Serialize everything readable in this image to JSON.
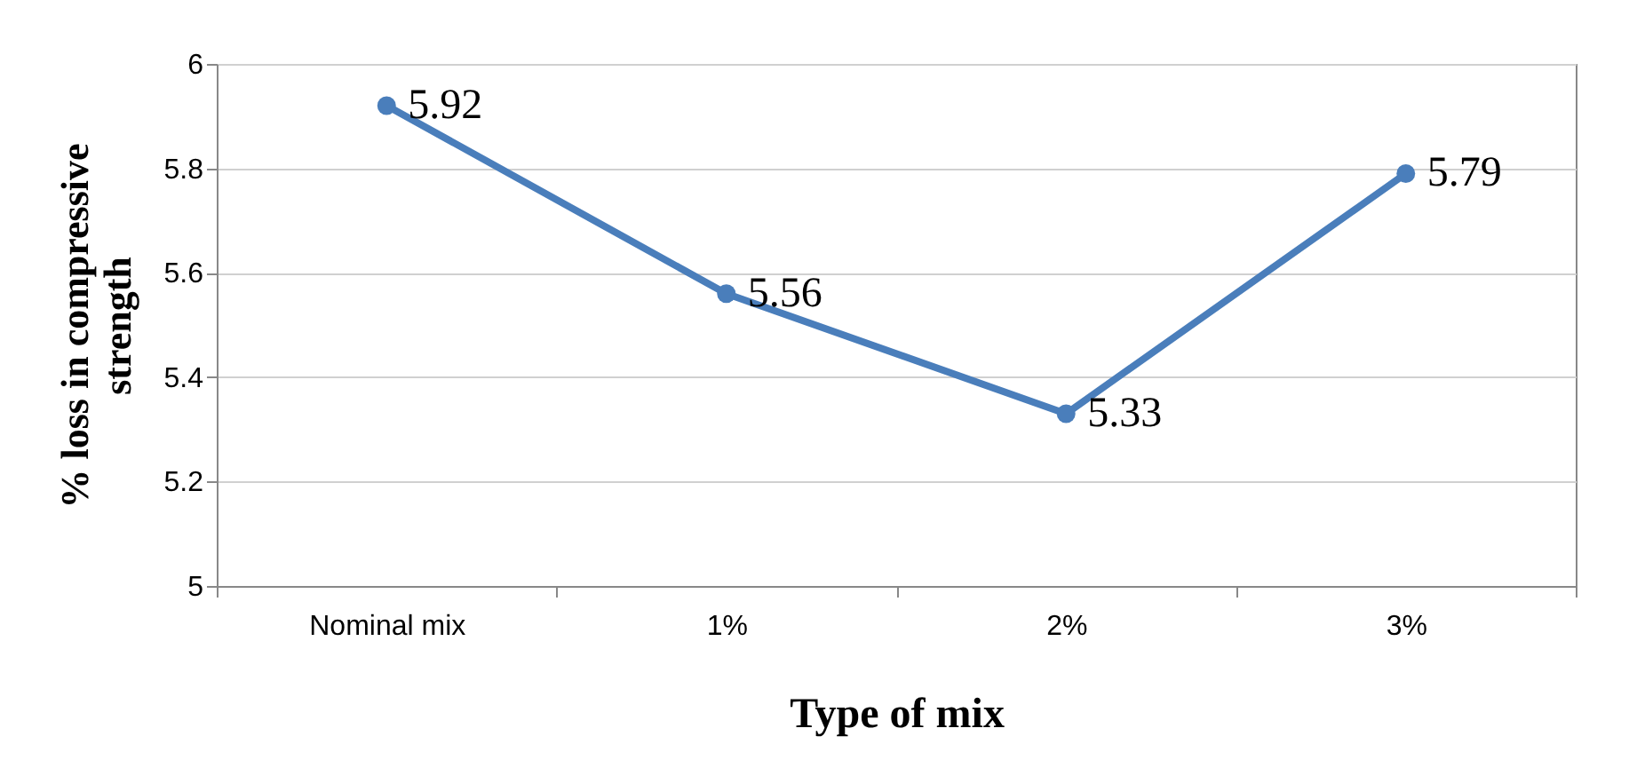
{
  "chart_data": {
    "type": "line",
    "xlabel": "Type of mix",
    "ylabel": "% loss in compressive strength",
    "categories": [
      "Nominal mix",
      "1%",
      "2%",
      "3%"
    ],
    "series": [
      {
        "color": "#4a7ebb",
        "values": [
          5.92,
          5.56,
          5.33,
          5.79
        ]
      }
    ],
    "ylim": [
      5,
      6
    ],
    "yticks": [
      5,
      5.2,
      5.4,
      5.6,
      5.8,
      6
    ],
    "grid": "y",
    "legend": false,
    "marker": "circle",
    "line_style": "solid",
    "data_labels": true
  }
}
